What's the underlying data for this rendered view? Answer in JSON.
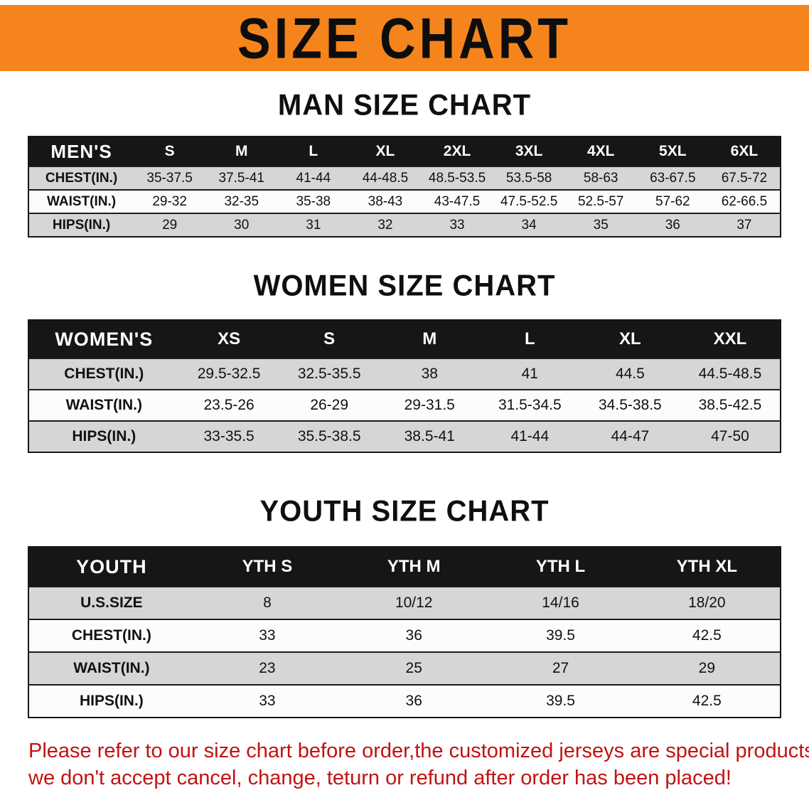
{
  "banner": {
    "title": "SIZE CHART"
  },
  "sections": [
    {
      "heading": "MAN SIZE CHART",
      "table": {
        "header_label": "MEN'S",
        "columns": [
          "S",
          "M",
          "L",
          "XL",
          "2XL",
          "3XL",
          "4XL",
          "5XL",
          "6XL"
        ],
        "rows": [
          {
            "label": "CHEST(IN.)",
            "values": [
              "35-37.5",
              "37.5-41",
              "41-44",
              "44-48.5",
              "48.5-53.5",
              "53.5-58",
              "58-63",
              "63-67.5",
              "67.5-72"
            ]
          },
          {
            "label": "WAIST(IN.)",
            "values": [
              "29-32",
              "32-35",
              "35-38",
              "38-43",
              "43-47.5",
              "47.5-52.5",
              "52.5-57",
              "57-62",
              "62-66.5"
            ]
          },
          {
            "label": "HIPS(IN.)",
            "values": [
              "29",
              "30",
              "31",
              "32",
              "33",
              "34",
              "35",
              "36",
              "37"
            ]
          }
        ]
      }
    },
    {
      "heading": "WOMEN SIZE CHART",
      "table": {
        "header_label": "WOMEN'S",
        "columns": [
          "XS",
          "S",
          "M",
          "L",
          "XL",
          "XXL"
        ],
        "rows": [
          {
            "label": "CHEST(IN.)",
            "values": [
              "29.5-32.5",
              "32.5-35.5",
              "38",
              "41",
              "44.5",
              "44.5-48.5"
            ]
          },
          {
            "label": "WAIST(IN.)",
            "values": [
              "23.5-26",
              "26-29",
              "29-31.5",
              "31.5-34.5",
              "34.5-38.5",
              "38.5-42.5"
            ]
          },
          {
            "label": "HIPS(IN.)",
            "values": [
              "33-35.5",
              "35.5-38.5",
              "38.5-41",
              "41-44",
              "44-47",
              "47-50"
            ]
          }
        ]
      }
    },
    {
      "heading": "YOUTH SIZE CHART",
      "table": {
        "header_label": "YOUTH",
        "columns": [
          "YTH S",
          "YTH M",
          "YTH L",
          "YTH XL"
        ],
        "rows": [
          {
            "label": "U.S.SIZE",
            "values": [
              "8",
              "10/12",
              "14/16",
              "18/20"
            ]
          },
          {
            "label": "CHEST(IN.)",
            "values": [
              "33",
              "36",
              "39.5",
              "42.5"
            ]
          },
          {
            "label": "WAIST(IN.)",
            "values": [
              "23",
              "25",
              "27",
              "29"
            ]
          },
          {
            "label": "HIPS(IN.)",
            "values": [
              "33",
              "36",
              "39.5",
              "42.5"
            ]
          }
        ]
      }
    }
  ],
  "disclaimer": {
    "line1": "Please refer to our size chart before order,the customized jerseys are special products,",
    "line2": "we don't accept cancel, change, teturn or refund after order has been placed!"
  },
  "colors": {
    "banner_orange": "#f5841d",
    "table_header_black": "#161616",
    "row_gray": "#d6d6d6",
    "disclaimer_red": "#c21212"
  }
}
